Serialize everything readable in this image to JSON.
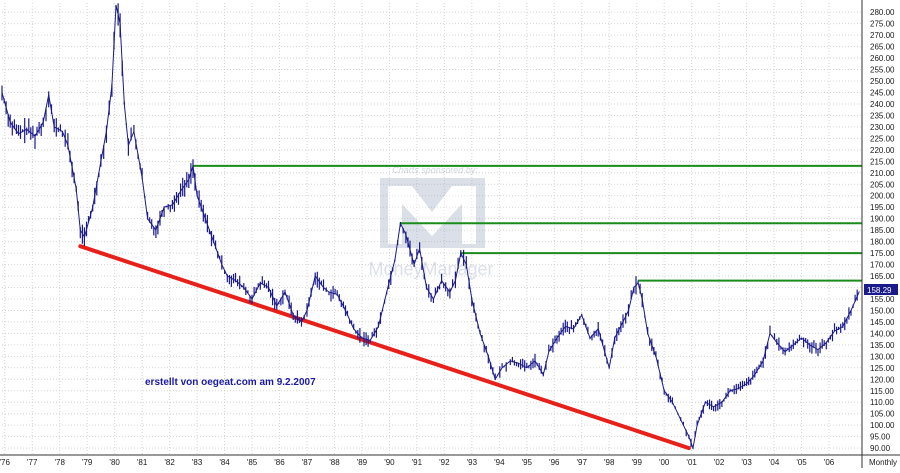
{
  "chart_data": {
    "type": "line",
    "frequency_label": "Monthly",
    "last_price_label": "158.29",
    "annotation": "erstellt von oegeat.com  am 9.2.2007",
    "watermark": {
      "sponsor": "Charts sponsored by:",
      "brand": "MoneyManager"
    },
    "ylim": [
      87,
      284
    ],
    "y_ticks": [
      "90.00",
      "95.00",
      "100.00",
      "105.00",
      "110.00",
      "115.00",
      "120.00",
      "125.00",
      "130.00",
      "135.00",
      "140.00",
      "145.00",
      "150.00",
      "155.00",
      "160.00",
      "165.00",
      "170.00",
      "175.00",
      "180.00",
      "185.00",
      "190.00",
      "195.00",
      "200.00",
      "205.00",
      "210.00",
      "215.00",
      "220.00",
      "225.00",
      "230.00",
      "235.00",
      "240.00",
      "245.00",
      "250.00",
      "255.00",
      "260.00",
      "265.00",
      "270.00",
      "275.00",
      "280.00"
    ],
    "x_ticks": [
      "'76",
      "'77",
      "'78",
      "'79",
      "'80",
      "'81",
      "'82",
      "'83",
      "'84",
      "'85",
      "'86",
      "'87",
      "'88",
      "'89",
      "'90",
      "'91",
      "'92",
      "'93",
      "'94",
      "'95",
      "'96",
      "'97",
      "'98",
      "'99",
      "'00",
      "'01",
      "'02",
      "'03",
      "'04",
      "'05",
      "'06"
    ],
    "grid": true,
    "series": [
      {
        "name": "",
        "color": "#1a1a8c",
        "points": [
          [
            1975.9,
            245
          ],
          [
            1976.2,
            232
          ],
          [
            1976.5,
            227
          ],
          [
            1976.8,
            229
          ],
          [
            1977.1,
            226
          ],
          [
            1977.4,
            232
          ],
          [
            1977.6,
            244
          ],
          [
            1977.8,
            230
          ],
          [
            1978.1,
            228
          ],
          [
            1978.3,
            222
          ],
          [
            1978.6,
            203
          ],
          [
            1978.75,
            185
          ],
          [
            1978.9,
            182
          ],
          [
            1979.2,
            195
          ],
          [
            1979.5,
            215
          ],
          [
            1979.7,
            228
          ],
          [
            1979.9,
            248
          ],
          [
            1980.05,
            283
          ],
          [
            1980.2,
            275
          ],
          [
            1980.35,
            240
          ],
          [
            1980.5,
            222
          ],
          [
            1980.7,
            228
          ],
          [
            1981.0,
            208
          ],
          [
            1981.2,
            190
          ],
          [
            1981.5,
            185
          ],
          [
            1981.8,
            195
          ],
          [
            1982.1,
            196
          ],
          [
            1982.4,
            202
          ],
          [
            1982.7,
            207
          ],
          [
            1982.85,
            213
          ],
          [
            1983.0,
            200
          ],
          [
            1983.3,
            190
          ],
          [
            1983.6,
            180
          ],
          [
            1983.9,
            170
          ],
          [
            1984.1,
            165
          ],
          [
            1984.4,
            163
          ],
          [
            1984.7,
            160
          ],
          [
            1985.0,
            155
          ],
          [
            1985.3,
            162
          ],
          [
            1985.6,
            160
          ],
          [
            1985.9,
            152
          ],
          [
            1986.2,
            158
          ],
          [
            1986.5,
            148
          ],
          [
            1986.8,
            145
          ],
          [
            1987.0,
            150
          ],
          [
            1987.3,
            165
          ],
          [
            1987.6,
            160
          ],
          [
            1987.8,
            158
          ],
          [
            1988.1,
            157
          ],
          [
            1988.4,
            150
          ],
          [
            1988.7,
            142
          ],
          [
            1989.0,
            138
          ],
          [
            1989.3,
            137
          ],
          [
            1989.6,
            143
          ],
          [
            1989.9,
            158
          ],
          [
            1990.2,
            172
          ],
          [
            1990.4,
            188
          ],
          [
            1990.6,
            183
          ],
          [
            1990.9,
            170
          ],
          [
            1991.1,
            177
          ],
          [
            1991.35,
            160
          ],
          [
            1991.6,
            155
          ],
          [
            1991.9,
            163
          ],
          [
            1992.2,
            158
          ],
          [
            1992.4,
            163
          ],
          [
            1992.6,
            175
          ],
          [
            1992.8,
            170
          ],
          [
            1993.0,
            155
          ],
          [
            1993.3,
            140
          ],
          [
            1993.6,
            130
          ],
          [
            1993.85,
            120
          ],
          [
            1994.1,
            125
          ],
          [
            1994.4,
            128
          ],
          [
            1994.7,
            127
          ],
          [
            1995.0,
            125
          ],
          [
            1995.3,
            128
          ],
          [
            1995.6,
            122
          ],
          [
            1995.8,
            132
          ],
          [
            1996.1,
            138
          ],
          [
            1996.4,
            143
          ],
          [
            1996.7,
            142
          ],
          [
            1997.0,
            148
          ],
          [
            1997.3,
            138
          ],
          [
            1997.6,
            142
          ],
          [
            1998.0,
            125
          ],
          [
            1998.2,
            138
          ],
          [
            1998.5,
            145
          ],
          [
            1998.7,
            150
          ],
          [
            1998.9,
            160
          ],
          [
            1999.05,
            162
          ],
          [
            1999.2,
            155
          ],
          [
            1999.4,
            140
          ],
          [
            1999.7,
            130
          ],
          [
            2000.0,
            115
          ],
          [
            2000.3,
            110
          ],
          [
            2000.5,
            105
          ],
          [
            2000.7,
            100
          ],
          [
            2000.9,
            95
          ],
          [
            2001.05,
            90
          ],
          [
            2001.2,
            100
          ],
          [
            2001.5,
            110
          ],
          [
            2001.8,
            108
          ],
          [
            2002.1,
            110
          ],
          [
            2002.4,
            115
          ],
          [
            2002.7,
            116
          ],
          [
            2003.0,
            118
          ],
          [
            2003.3,
            122
          ],
          [
            2003.6,
            128
          ],
          [
            2003.85,
            140
          ],
          [
            2004.1,
            136
          ],
          [
            2004.4,
            132
          ],
          [
            2004.7,
            135
          ],
          [
            2005.0,
            138
          ],
          [
            2005.3,
            135
          ],
          [
            2005.6,
            133
          ],
          [
            2005.9,
            136
          ],
          [
            2006.2,
            141
          ],
          [
            2006.5,
            143
          ],
          [
            2006.8,
            150
          ],
          [
            2007.1,
            158.29
          ]
        ]
      }
    ],
    "reference_lines": [
      {
        "type": "support",
        "color": "#e8201a",
        "from": [
          1978.75,
          178
        ],
        "to": [
          2000.9,
          90
        ]
      },
      {
        "type": "resistance",
        "color": "#1a8c1a",
        "y": 213,
        "x_start": 1982.85
      },
      {
        "type": "resistance",
        "color": "#1a8c1a",
        "y": 188,
        "x_start": 1990.4
      },
      {
        "type": "resistance",
        "color": "#1a8c1a",
        "y": 175,
        "x_start": 1992.6
      },
      {
        "type": "resistance",
        "color": "#1a8c1a",
        "y": 163,
        "x_start": 1999.05
      }
    ]
  }
}
